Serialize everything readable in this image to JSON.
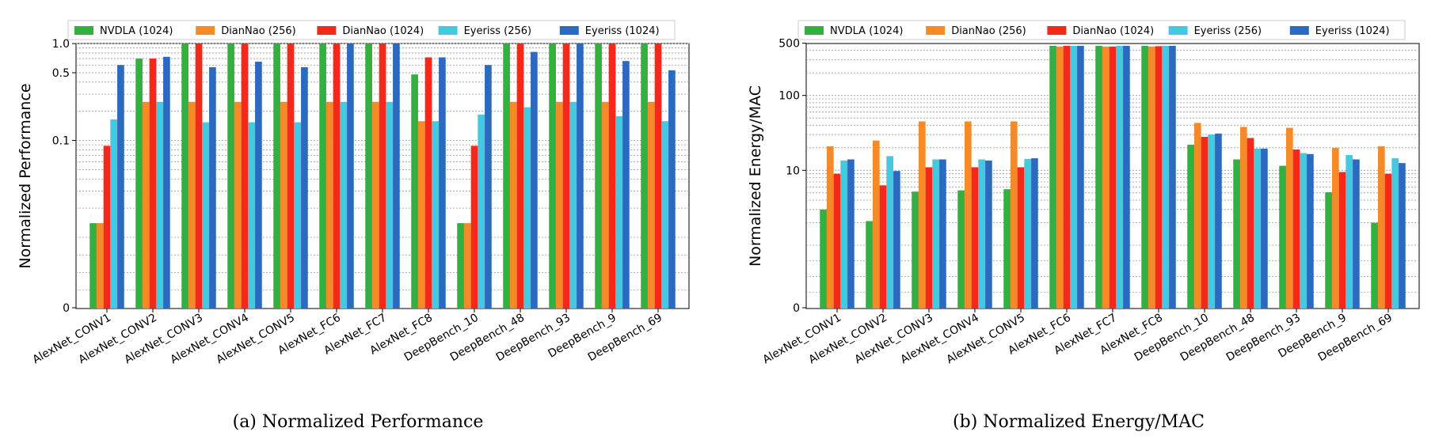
{
  "legend_labels": [
    "NVDLA (1024)",
    "DianNao (256)",
    "DianNao (1024)",
    "Eyeriss (256)",
    "Eyeriss (1024)"
  ],
  "series_colors": [
    "#33b040",
    "#f58a26",
    "#f5281a",
    "#45c8e0",
    "#2c6ac2"
  ],
  "chart_data": [
    {
      "type": "bar",
      "caption": "(a) Normalized Performance",
      "ylabel": "Normalized Performance",
      "yscale": "symlog",
      "ylim": [
        0,
        1.1
      ],
      "yticks": [
        0,
        0.1,
        0.5,
        1.0
      ],
      "ytick_labels": [
        "0",
        "0.1",
        "0.5",
        "1.0"
      ],
      "grid": "horizontal",
      "legend_position": "top",
      "categories": [
        "AlexNet_CONV1",
        "AlexNet_CONV2",
        "AlexNet_CONV3",
        "AlexNet_CONV4",
        "AlexNet_CONV5",
        "AlexNet_FC6",
        "AlexNet_FC7",
        "AlexNet_FC8",
        "DeepBench_10",
        "DeepBench_48",
        "DeepBench_93",
        "DeepBench_9",
        "DeepBench_69"
      ],
      "series": [
        {
          "name": "NVDLA (1024)",
          "values": [
            0.014,
            0.7,
            1.0,
            1.0,
            1.0,
            1.0,
            1.0,
            0.48,
            0.014,
            1.0,
            1.0,
            1.0,
            1.0
          ]
        },
        {
          "name": "DianNao (256)",
          "values": [
            0.014,
            0.25,
            0.25,
            0.25,
            0.25,
            0.25,
            0.25,
            0.158,
            0.014,
            0.25,
            0.25,
            0.25,
            0.25
          ]
        },
        {
          "name": "DianNao (1024)",
          "values": [
            0.088,
            0.7,
            1.0,
            1.0,
            1.0,
            1.0,
            1.0,
            0.72,
            0.088,
            1.0,
            1.0,
            1.0,
            1.0
          ]
        },
        {
          "name": "Eyeriss (256)",
          "values": [
            0.165,
            0.25,
            0.154,
            0.154,
            0.154,
            0.25,
            0.25,
            0.158,
            0.185,
            0.22,
            0.25,
            0.178,
            0.158
          ]
        },
        {
          "name": "Eyeriss (1024)",
          "values": [
            0.6,
            0.73,
            0.57,
            0.65,
            0.57,
            1.0,
            1.0,
            0.72,
            0.6,
            0.82,
            1.0,
            0.66,
            0.53
          ]
        }
      ]
    },
    {
      "type": "bar",
      "caption": "(b) Normalized Energy/MAC",
      "ylabel": "Normalized Energy/MAC",
      "yscale": "symlog",
      "ylim": [
        0,
        600
      ],
      "yticks": [
        0,
        10,
        100,
        500
      ],
      "ytick_labels": [
        "0",
        "10",
        "100",
        "500"
      ],
      "grid": "horizontal",
      "legend_position": "top",
      "categories": [
        "AlexNet_CONV1",
        "AlexNet_CONV2",
        "AlexNet_CONV3",
        "AlexNet_CONV4",
        "AlexNet_CONV5",
        "AlexNet_FC6",
        "AlexNet_FC7",
        "AlexNet_FC8",
        "DeepBench_10",
        "DeepBench_48",
        "DeepBench_93",
        "DeepBench_9",
        "DeepBench_69"
      ],
      "series": [
        {
          "name": "NVDLA (1024)",
          "values": [
            3.0,
            2.1,
            5.2,
            5.4,
            5.6,
            460,
            460,
            460,
            22,
            14,
            11.5,
            5.1,
            2.0
          ]
        },
        {
          "name": "DianNao (256)",
          "values": [
            21,
            25,
            45,
            45,
            45,
            450,
            450,
            450,
            43,
            38,
            37,
            20,
            21
          ]
        },
        {
          "name": "DianNao (1024)",
          "values": [
            9,
            6.3,
            11,
            11,
            11,
            460,
            450,
            455,
            28,
            27,
            19,
            9.5,
            9
          ]
        },
        {
          "name": "Eyeriss (256)",
          "values": [
            13.5,
            15.5,
            14,
            14,
            14.2,
            460,
            460,
            460,
            30,
            19.5,
            17,
            16,
            14.5
          ]
        },
        {
          "name": "Eyeriss (1024)",
          "values": [
            14,
            9.8,
            14,
            13.5,
            14.5,
            460,
            460,
            460,
            31,
            19.5,
            16.5,
            14,
            12.5
          ]
        }
      ]
    }
  ]
}
